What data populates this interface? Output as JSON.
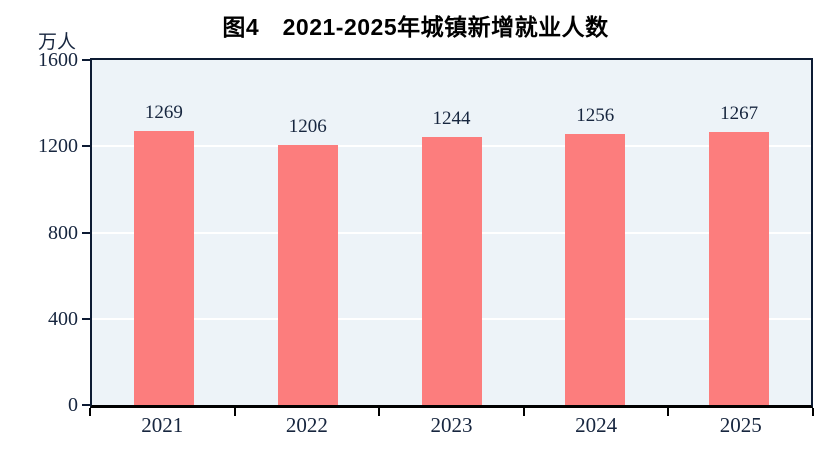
{
  "title": "图4　2021-2025年城镇新增就业人数",
  "unit_label": "万人",
  "colors": {
    "bar": "#FC7D7D",
    "plot_background": "#EDF3F8",
    "plot_border": "#0D1B33",
    "axis_bottom": "#000000",
    "gridline": "#FFFFFF",
    "text": "#17263F",
    "title_text": "#000000"
  },
  "chart_data": {
    "type": "bar",
    "title": "图4　2021-2025年城镇新增就业人数",
    "categories": [
      "2021",
      "2022",
      "2023",
      "2024",
      "2025"
    ],
    "values": [
      1269,
      1206,
      1244,
      1256,
      1267
    ],
    "xlabel": "",
    "ylabel": "万人",
    "ylim": [
      0,
      1600
    ],
    "yticks": [
      0,
      400,
      800,
      1200,
      1600
    ],
    "grid": "horizontal",
    "gridlines_behind_bars": true,
    "legend_position": "none",
    "data_labels": [
      1269,
      1206,
      1244,
      1256,
      1267
    ]
  }
}
